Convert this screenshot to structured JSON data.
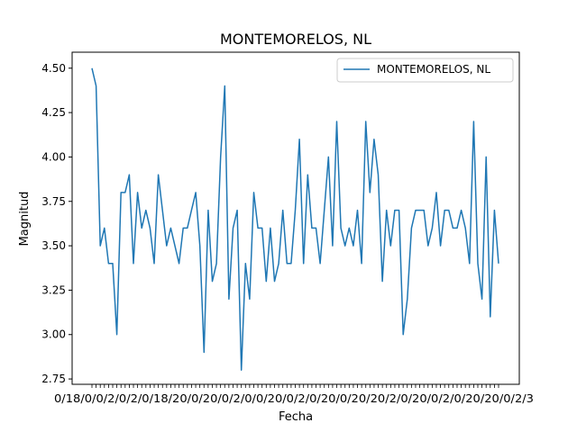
{
  "chart_data": {
    "type": "line",
    "title": "MONTEMORELOS, NL",
    "xlabel": "Fecha",
    "ylabel": "Magnitud",
    "ylim": [
      2.72,
      4.59
    ],
    "yticks": [
      "2.75",
      "3.00",
      "3.25",
      "3.50",
      "3.75",
      "4.00",
      "4.25",
      "4.50"
    ],
    "grid": false,
    "legend_position": "top-right",
    "x_tick_labels_note": "unreadable overlapping date labels",
    "color": "#1f77b4",
    "series": [
      {
        "name": "MONTEMORELOS, NL",
        "values": [
          4.5,
          4.4,
          3.5,
          3.6,
          3.4,
          3.4,
          3.0,
          3.8,
          3.8,
          3.9,
          3.4,
          3.8,
          3.6,
          3.7,
          3.6,
          3.4,
          3.9,
          3.7,
          3.5,
          3.6,
          3.5,
          3.4,
          3.6,
          3.6,
          3.7,
          3.8,
          3.5,
          2.9,
          3.7,
          3.3,
          3.4,
          4.0,
          4.4,
          3.2,
          3.6,
          3.7,
          2.8,
          3.4,
          3.2,
          3.8,
          3.6,
          3.6,
          3.3,
          3.6,
          3.3,
          3.4,
          3.7,
          3.4,
          3.4,
          3.7,
          4.1,
          3.4,
          3.9,
          3.6,
          3.6,
          3.4,
          3.7,
          4.0,
          3.5,
          4.2,
          3.6,
          3.5,
          3.6,
          3.5,
          3.7,
          3.4,
          4.2,
          3.8,
          4.1,
          3.9,
          3.3,
          3.7,
          3.5,
          3.7,
          3.7,
          3.0,
          3.2,
          3.6,
          3.7,
          3.7,
          3.7,
          3.5,
          3.6,
          3.8,
          3.5,
          3.7,
          3.7,
          3.6,
          3.6,
          3.7,
          3.6,
          3.4,
          4.2,
          3.4,
          3.2,
          4.0,
          3.1,
          3.7,
          3.4
        ]
      }
    ]
  }
}
